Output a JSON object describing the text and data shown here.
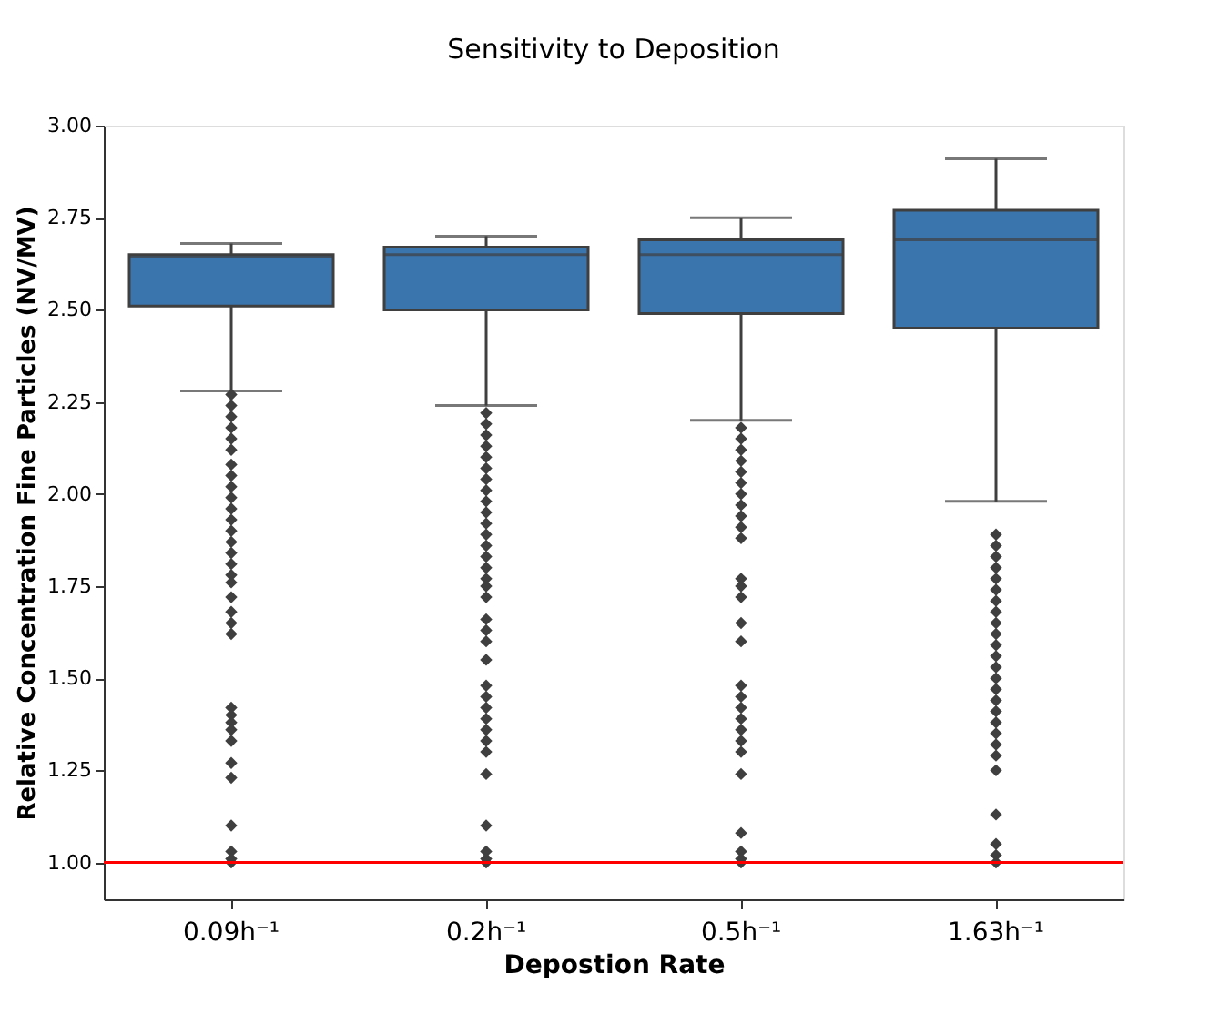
{
  "chart_data": {
    "type": "box",
    "title": "Sensitivity to Deposition",
    "xlabel": "Depostion Rate",
    "ylabel": "Relative Concentration Fine Particles (NV/MV)",
    "categories": [
      "0.09h⁻¹",
      "0.2h⁻¹",
      "0.5h⁻¹",
      "1.63h⁻¹"
    ],
    "color": "#3a75ae",
    "boxes": [
      {
        "low": 2.28,
        "q1": 2.51,
        "median": 2.645,
        "q3": 2.65,
        "high": 2.68,
        "outliers": [
          2.27,
          2.24,
          2.21,
          2.18,
          2.15,
          2.12,
          2.08,
          2.05,
          2.02,
          1.99,
          1.96,
          1.93,
          1.9,
          1.87,
          1.84,
          1.81,
          1.78,
          1.76,
          1.72,
          1.68,
          1.65,
          1.62,
          1.42,
          1.4,
          1.38,
          1.36,
          1.33,
          1.27,
          1.23,
          1.1,
          1.03,
          1.01,
          1.0
        ]
      },
      {
        "low": 2.24,
        "q1": 2.5,
        "median": 2.65,
        "q3": 2.67,
        "high": 2.7,
        "outliers": [
          2.22,
          2.19,
          2.16,
          2.13,
          2.1,
          2.07,
          2.04,
          2.01,
          1.98,
          1.95,
          1.92,
          1.89,
          1.86,
          1.83,
          1.8,
          1.77,
          1.75,
          1.72,
          1.66,
          1.63,
          1.6,
          1.55,
          1.48,
          1.45,
          1.42,
          1.39,
          1.36,
          1.33,
          1.3,
          1.24,
          1.1,
          1.03,
          1.01,
          1.0
        ]
      },
      {
        "low": 2.2,
        "q1": 2.49,
        "median": 2.65,
        "q3": 2.69,
        "high": 2.75,
        "outliers": [
          2.18,
          2.15,
          2.12,
          2.09,
          2.06,
          2.03,
          2.0,
          1.97,
          1.94,
          1.91,
          1.88,
          1.77,
          1.75,
          1.72,
          1.65,
          1.6,
          1.48,
          1.45,
          1.42,
          1.39,
          1.36,
          1.33,
          1.3,
          1.24,
          1.08,
          1.03,
          1.01,
          1.0
        ]
      },
      {
        "low": 1.98,
        "q1": 2.45,
        "median": 2.69,
        "q3": 2.77,
        "high": 2.91,
        "outliers": [
          1.89,
          1.86,
          1.83,
          1.8,
          1.77,
          1.74,
          1.71,
          1.68,
          1.65,
          1.62,
          1.59,
          1.56,
          1.53,
          1.5,
          1.47,
          1.44,
          1.41,
          1.38,
          1.35,
          1.32,
          1.29,
          1.25,
          1.13,
          1.05,
          1.02,
          1.0
        ]
      }
    ],
    "ylim": [
      0.9,
      3.0
    ],
    "yticks": [
      {
        "value": 1.0,
        "label": "1.00"
      },
      {
        "value": 1.25,
        "label": "1.25"
      },
      {
        "value": 1.5,
        "label": "1.50"
      },
      {
        "value": 1.75,
        "label": "1.75"
      },
      {
        "value": 2.0,
        "label": "2.00"
      },
      {
        "value": 2.25,
        "label": "2.25"
      },
      {
        "value": 2.5,
        "label": "2.50"
      },
      {
        "value": 2.75,
        "label": "2.75"
      },
      {
        "value": 3.0,
        "label": "3.00"
      }
    ],
    "ref_lines": [
      {
        "axis": "y",
        "value": 1.0,
        "color": "#ff0000"
      }
    ],
    "grid": false,
    "marker": "diamond"
  }
}
